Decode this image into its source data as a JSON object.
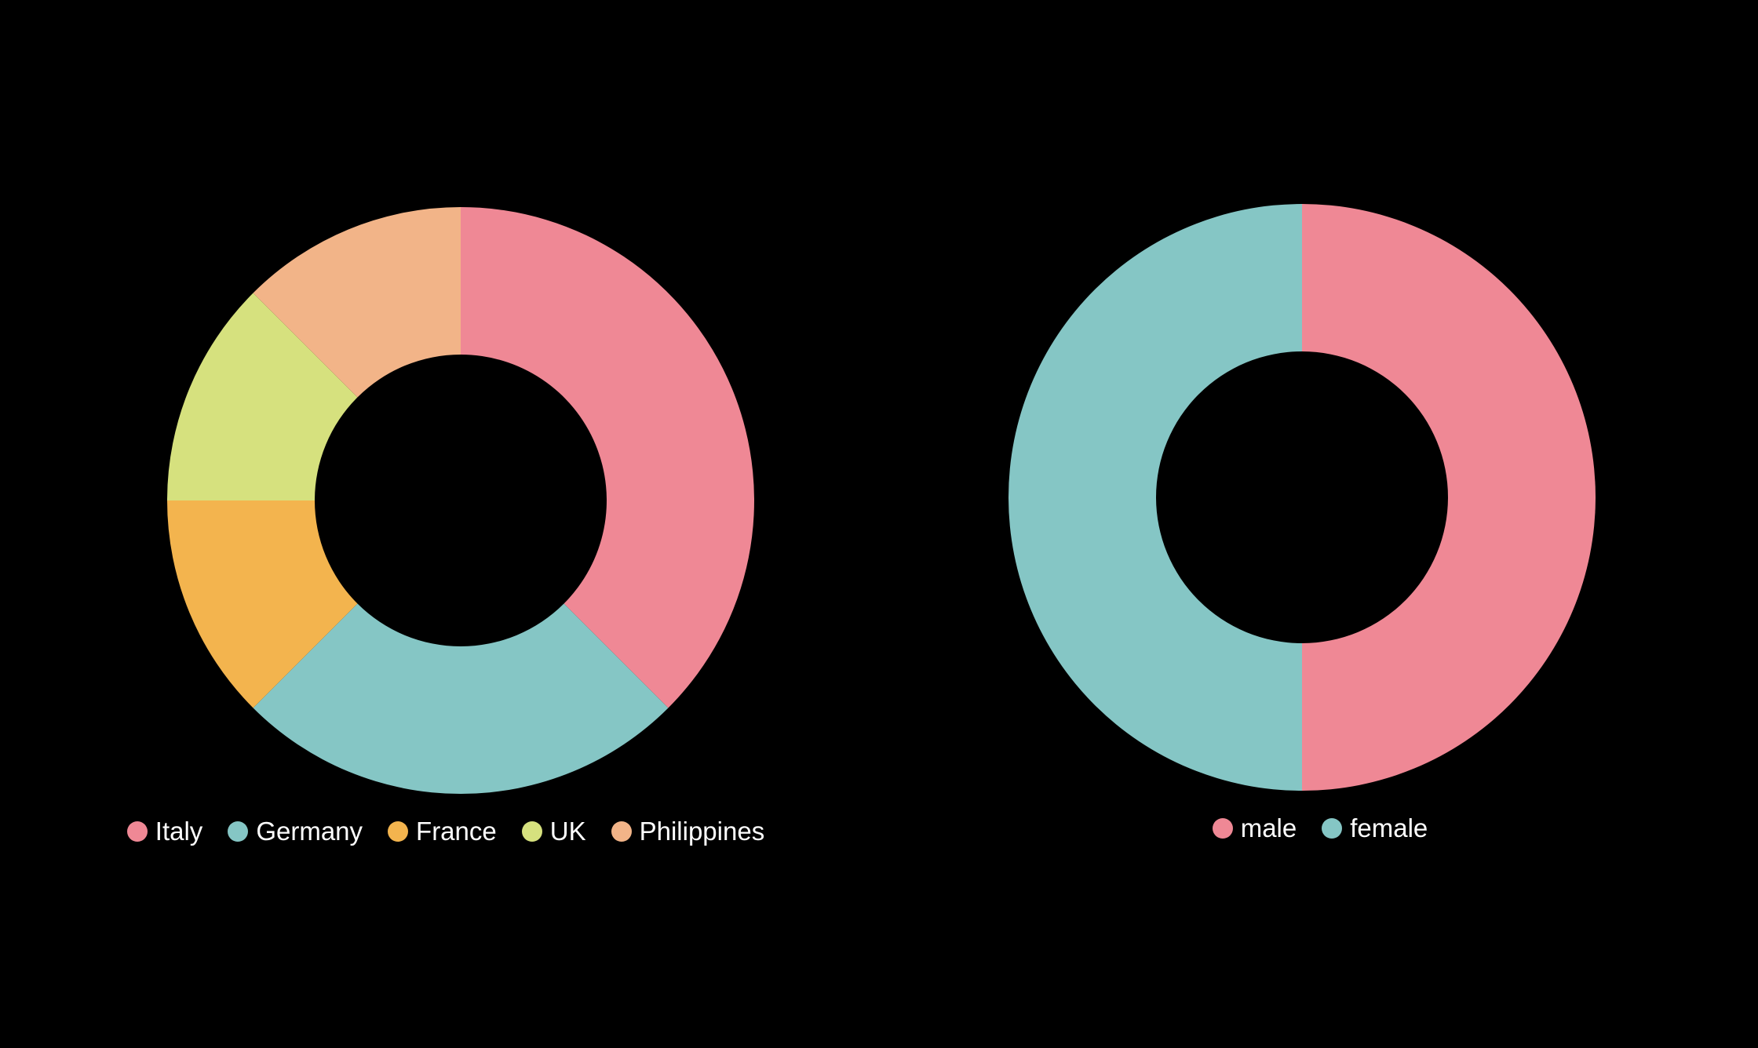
{
  "chart_data": [
    {
      "type": "pie",
      "variant": "donut",
      "title": "",
      "categories": [
        "Italy",
        "Germany",
        "France",
        "UK",
        "Philippines"
      ],
      "values": [
        37.5,
        25,
        12.5,
        12.5,
        12.5
      ],
      "colors": [
        "#EF8895",
        "#85C6C5",
        "#F3B44E",
        "#D6E17E",
        "#F2B488"
      ],
      "legend_position": "bottom"
    },
    {
      "type": "pie",
      "variant": "donut",
      "title": "",
      "categories": [
        "male",
        "female"
      ],
      "values": [
        50,
        50
      ],
      "colors": [
        "#EF8895",
        "#85C6C5"
      ],
      "legend_position": "bottom"
    }
  ]
}
